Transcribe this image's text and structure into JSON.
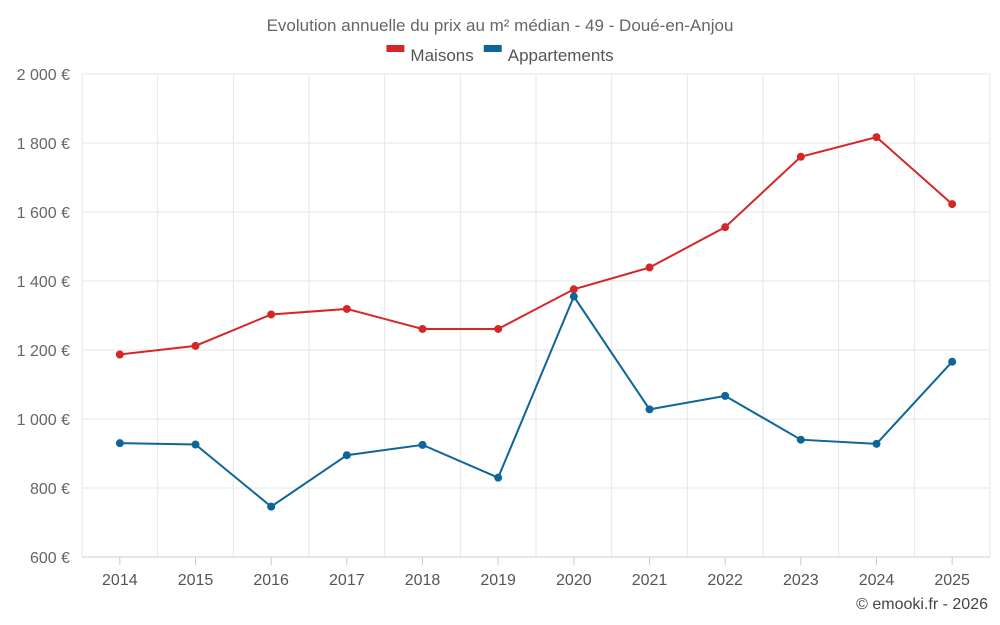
{
  "chart_data": {
    "type": "line",
    "title": "Evolution annuelle du prix au m² médian - 49 - Doué-en-Anjou",
    "xlabel": "",
    "ylabel": "",
    "categories": [
      "2014",
      "2015",
      "2016",
      "2017",
      "2018",
      "2019",
      "2020",
      "2021",
      "2022",
      "2023",
      "2024",
      "2025"
    ],
    "ylim": [
      600,
      2000
    ],
    "yticks": [
      600,
      800,
      1000,
      1200,
      1400,
      1600,
      1800,
      2000
    ],
    "ytick_labels": [
      "600 €",
      "800 €",
      "1 000 €",
      "1 200 €",
      "1 400 €",
      "1 600 €",
      "1 800 €",
      "2 000 €"
    ],
    "grid": true,
    "legend_position": "top-center",
    "series": [
      {
        "name": "Maisons",
        "color": "#d62728",
        "values": [
          1187,
          1212,
          1303,
          1319,
          1261,
          1261,
          1376,
          1439,
          1556,
          1760,
          1817,
          1623
        ]
      },
      {
        "name": "Appartements",
        "color": "#0e6599",
        "values": [
          930,
          926,
          746,
          895,
          925,
          830,
          1355,
          1028,
          1067,
          940,
          928,
          1166
        ]
      }
    ]
  },
  "credit": "© emooki.fr - 2026"
}
